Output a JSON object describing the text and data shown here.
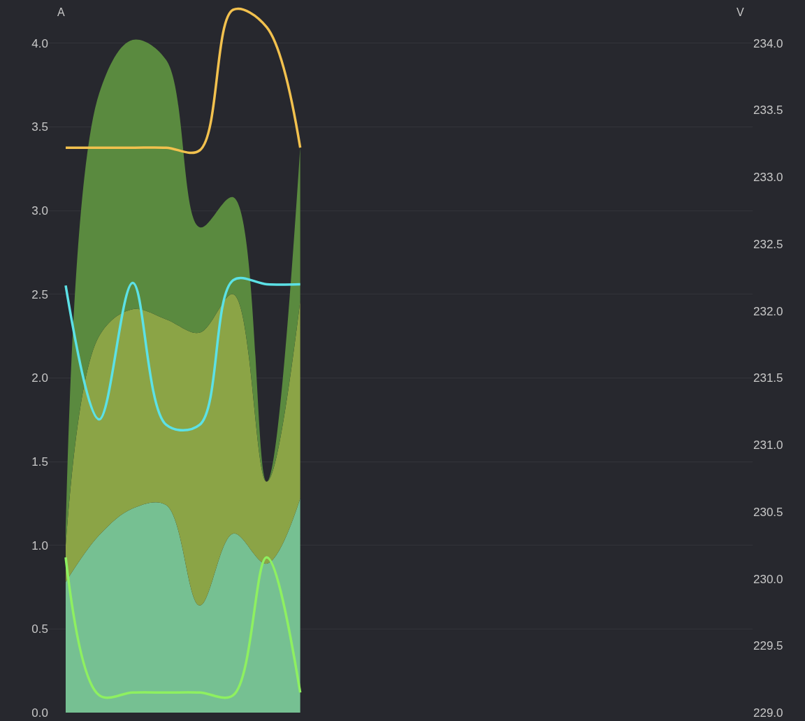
{
  "chart_data": {
    "type": "area",
    "stacked": true,
    "ylabel": "A",
    "y2label": "V",
    "categories": [
      null,
      null,
      null,
      null,
      null,
      null,
      null,
      null,
      null,
      null,
      null,
      null,
      null,
      null,
      null,
      null,
      null,
      null,
      null,
      null,
      null
    ],
    "series": [
      {
        "color": "#76c092",
        "values": [
          0.78,
          1.06,
          1.22,
          1.24,
          0.64,
          1.07,
          0.89,
          1.28,
          null,
          null,
          null,
          null,
          null,
          null,
          null,
          null,
          null,
          null,
          null,
          null,
          null
        ]
      },
      {
        "color": "#8ba446",
        "values": [
          0.22,
          1.19,
          1.19,
          1.11,
          1.63,
          1.43,
          0.49,
          1.18,
          null,
          null,
          null,
          null,
          null,
          null,
          null,
          null,
          null,
          null,
          null,
          null,
          null
        ]
      },
      {
        "color": "#5a8a3f",
        "values": [
          0.1,
          1.45,
          1.61,
          1.55,
          0.63,
          0.58,
          0.0,
          0.92,
          null,
          null,
          null,
          null,
          null,
          null,
          null,
          null,
          null,
          null,
          null,
          null,
          null
        ]
      },
      {
        "type": "line",
        "axis": "y2",
        "color": "#f2c14e",
        "values": [
          233.22,
          233.22,
          233.22,
          233.22,
          233.2,
          234.25,
          234.12,
          233.22,
          null,
          null,
          null,
          null,
          null,
          null,
          null,
          null,
          null,
          null,
          null,
          null,
          null
        ]
      },
      {
        "type": "line",
        "axis": "y2",
        "color": "#8ef060",
        "values": [
          230.16,
          229.13,
          229.15,
          229.15,
          229.15,
          229.13,
          230.16,
          229.15,
          null,
          null,
          null,
          null,
          null,
          null,
          null,
          null,
          null,
          null,
          null,
          null,
          null
        ]
      },
      {
        "type": "line",
        "axis": "y2",
        "color": "#5ce1e6",
        "values": [
          232.19,
          231.19,
          232.21,
          231.15,
          231.15,
          232.23,
          232.2,
          232.2,
          null,
          null,
          null,
          null,
          null,
          null,
          null,
          null,
          null,
          null,
          null,
          null,
          null
        ]
      }
    ],
    "ylim": [
      0,
      4.25
    ],
    "yticks": [
      {
        "value": 0,
        "label": "0.0"
      },
      0.5,
      {
        "value": 1,
        "label": "1.0"
      },
      1.5,
      {
        "value": 2,
        "label": "2.0"
      },
      2.5,
      {
        "value": 3,
        "label": "3.0"
      },
      3.5,
      {
        "value": 4,
        "label": "4.0"
      }
    ],
    "y2lim": [
      229,
      234.3125
    ],
    "y2ticks": [
      {
        "value": 229,
        "label": "229.0"
      },
      229.5,
      {
        "value": 230,
        "label": "230.0"
      },
      230.5,
      {
        "value": 231,
        "label": "231.0"
      },
      231.5,
      {
        "value": 232,
        "label": "232.0"
      },
      232.5,
      {
        "value": 233,
        "label": "233.0"
      },
      233.5,
      {
        "value": 234,
        "label": "234.0"
      }
    ],
    "grid": "y",
    "legend": false,
    "line_style": "solid",
    "marker": "none"
  }
}
